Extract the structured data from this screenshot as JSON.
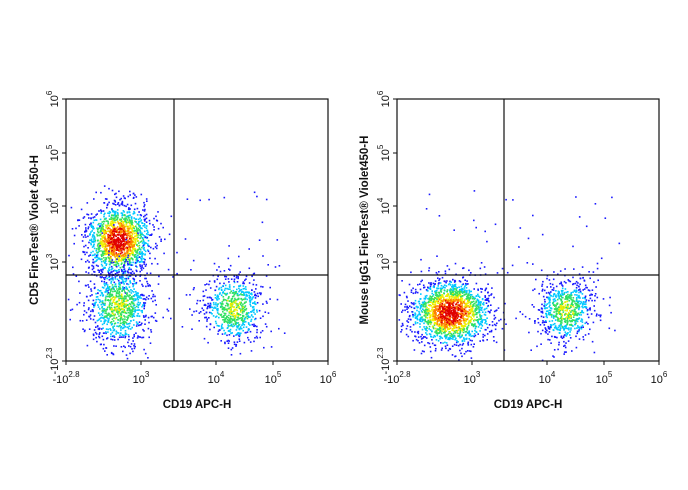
{
  "chart_data": [
    {
      "type": "scatter",
      "subtype": "flow-cytometry-density-plot",
      "xlabel": "CD19 APC-H",
      "ylabel": "CD5 FineTest® Violet 450-H",
      "x_scale": "biexponential",
      "y_scale": "biexponential",
      "xlim": [
        "-10^2.8",
        "10^6"
      ],
      "ylim": [
        "-10^2.3",
        "10^6"
      ],
      "x_ticks": [
        {
          "base": "-10",
          "exp": "2.8"
        },
        {
          "base": "10",
          "exp": "3"
        },
        {
          "base": "10",
          "exp": "4"
        },
        {
          "base": "10",
          "exp": "5"
        },
        {
          "base": "10",
          "exp": "6"
        }
      ],
      "y_ticks": [
        {
          "base": "-10",
          "exp": "2.3"
        },
        {
          "base": "10",
          "exp": "3"
        },
        {
          "base": "10",
          "exp": "4"
        },
        {
          "base": "10",
          "exp": "5"
        },
        {
          "base": "10",
          "exp": "6"
        }
      ],
      "quadrant_gate": {
        "x_threshold": "~2.5×10^3",
        "y_threshold": "~6×10^2"
      },
      "populations": [
        {
          "name": "CD19- CD5+ (high density)",
          "x_center": "~4×10^2",
          "y_center": "~2×10^3",
          "density": "high"
        },
        {
          "name": "CD19- CD5-",
          "x_center": "~4×10^2",
          "y_center": "~1×10^2",
          "density": "medium"
        },
        {
          "name": "CD19+ CD5-",
          "x_center": "~2×10^4",
          "y_center": "~1×10^2",
          "density": "medium"
        }
      ]
    },
    {
      "type": "scatter",
      "subtype": "flow-cytometry-density-plot",
      "xlabel": "CD19 APC-H",
      "ylabel": "Mouse IgG1 FineTest® Violet450-H",
      "x_scale": "biexponential",
      "y_scale": "biexponential",
      "xlim": [
        "-10^2.8",
        "10^6"
      ],
      "ylim": [
        "-10^2.3",
        "10^6"
      ],
      "x_ticks": [
        {
          "base": "-10",
          "exp": "2.8"
        },
        {
          "base": "10",
          "exp": "3"
        },
        {
          "base": "10",
          "exp": "4"
        },
        {
          "base": "10",
          "exp": "5"
        },
        {
          "base": "10",
          "exp": "6"
        }
      ],
      "y_ticks": [
        {
          "base": "-10",
          "exp": "2.3"
        },
        {
          "base": "10",
          "exp": "3"
        },
        {
          "base": "10",
          "exp": "4"
        },
        {
          "base": "10",
          "exp": "5"
        },
        {
          "base": "10",
          "exp": "6"
        }
      ],
      "quadrant_gate": {
        "x_threshold": "~2.5×10^3",
        "y_threshold": "~6×10^2"
      },
      "populations": [
        {
          "name": "CD19- isotype (high density)",
          "x_center": "~5×10^2",
          "y_center": "~1×10^2",
          "density": "high"
        },
        {
          "name": "CD19+ isotype",
          "x_center": "~2×10^4",
          "y_center": "~1×10^2",
          "density": "medium"
        }
      ]
    }
  ],
  "colors": {
    "low": "#1a1aff",
    "mid_low": "#00c8ff",
    "mid": "#30e060",
    "mid_high": "#f0f000",
    "high": "#ff8000",
    "peak": "#e00000",
    "axis": "#111111"
  }
}
